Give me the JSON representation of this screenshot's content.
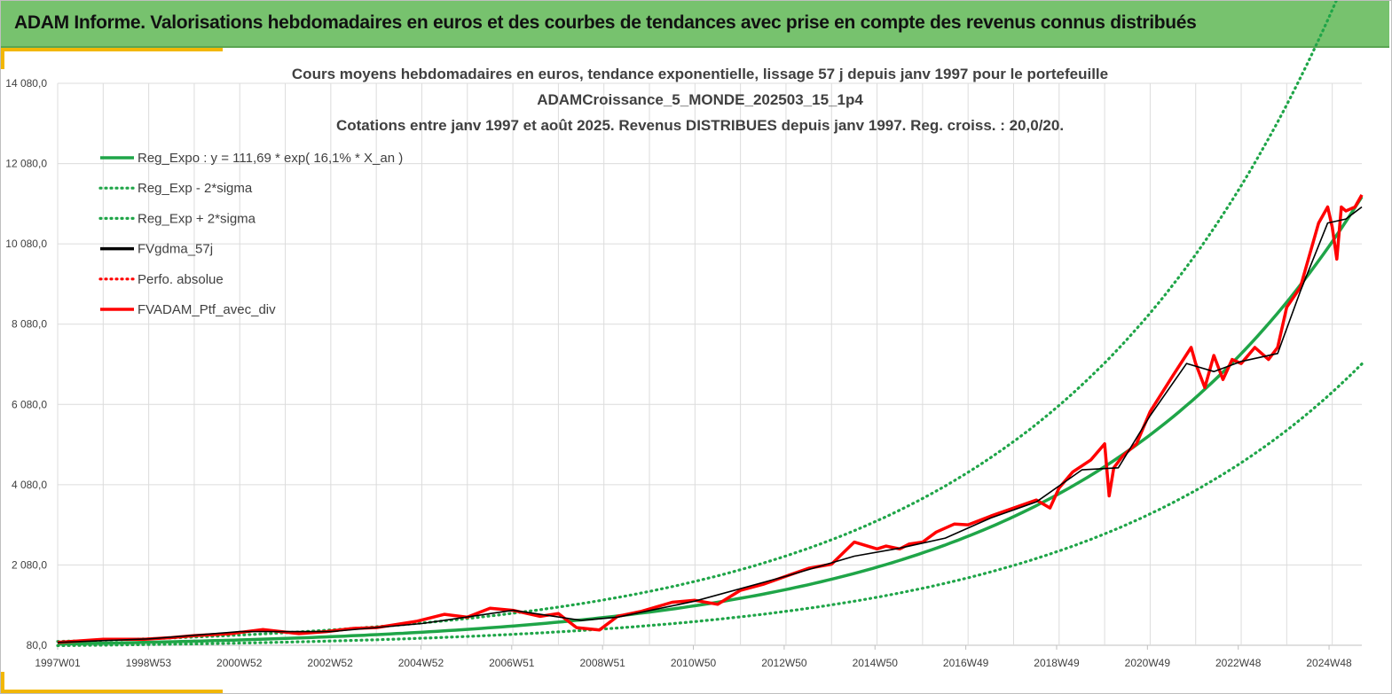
{
  "banner": {
    "title": "ADAM Informe. Valorisations hebdomadaires en euros et des courbes de tendances avec prise en compte des revenus connus distribués"
  },
  "colors": {
    "banner_bg": "#77c26e",
    "accent": "#f2b705",
    "green": "#1fa548",
    "red": "#ff0000",
    "black": "#000000",
    "grid": "#dcdcdc"
  },
  "chart_data": {
    "type": "line",
    "title_lines": [
      "Cours moyens hebdomadaires  en euros, tendance exponentielle, lissage 57 j depuis janv 1997 pour le portefeuille",
      "ADAMCroissance_5_MONDE_202503_15_1p4",
      "Cotations  entre janv 1997 et août 2025. Revenus DISTRIBUES depuis janv 1997. Reg. croiss. : 20,0/20."
    ],
    "x_range": [
      1997.0,
      2025.65
    ],
    "ylim": [
      80,
      14080
    ],
    "y_ticks": [
      "80,0",
      "2 080,0",
      "4 080,0",
      "6 080,0",
      "8 080,0",
      "10 080,0",
      "12 080,0",
      "14 080,0"
    ],
    "x_ticks": [
      "1997W01",
      "1998W53",
      "2000W52",
      "2002W52",
      "2004W52",
      "2006W51",
      "2008W51",
      "2010W50",
      "2012W50",
      "2014W50",
      "2016W49",
      "2018W49",
      "2020W49",
      "2022W48",
      "2024W48"
    ],
    "grid": true,
    "legend_position": "top-left",
    "legend": [
      {
        "label": "Reg_Expo : y = 111,69 * exp( 16,1% *  X_an )",
        "color": "#1fa548",
        "style": "solid"
      },
      {
        "label": "Reg_Exp - 2*sigma",
        "color": "#1fa548",
        "style": "dotted"
      },
      {
        "label": "Reg_Exp + 2*sigma",
        "color": "#1fa548",
        "style": "dotted"
      },
      {
        "label": "FVgdma_57j",
        "color": "#000000",
        "style": "solid"
      },
      {
        "label": "Perfo. absolue",
        "color": "#ff0000",
        "style": "dotted"
      },
      {
        "label": "FVADAM_Ptf_avec_div",
        "color": "#ff0000",
        "style": "solid"
      }
    ],
    "regression": {
      "a": 111.69,
      "b": 0.161,
      "band_low_factor": 0.63,
      "band_high_factor": 1.57
    },
    "series": [
      {
        "name": "FVADAM_Ptf_avec_div",
        "x": [
          1997.0,
          1998.0,
          1998.9,
          1999.5,
          2000.0,
          2000.8,
          2001.5,
          2002.3,
          2002.9,
          2003.5,
          2004.0,
          2004.9,
          2005.5,
          2006.0,
          2006.5,
          2007.0,
          2007.6,
          2008.0,
          2008.4,
          2008.9,
          2009.3,
          2009.8,
          2010.5,
          2011.0,
          2011.5,
          2012.0,
          2012.5,
          2013.0,
          2013.5,
          2014.0,
          2014.5,
          2015.0,
          2015.2,
          2015.5,
          2015.7,
          2016.0,
          2016.3,
          2016.7,
          2017.0,
          2017.5,
          2018.0,
          2018.5,
          2018.8,
          2019.0,
          2019.3,
          2019.7,
          2020.0,
          2020.1,
          2020.2,
          2020.4,
          2020.7,
          2021.0,
          2021.5,
          2021.9,
          2022.0,
          2022.2,
          2022.4,
          2022.6,
          2022.8,
          2023.0,
          2023.3,
          2023.6,
          2023.8,
          2024.0,
          2024.3,
          2024.5,
          2024.7,
          2024.9,
          2025.0,
          2025.1,
          2025.2,
          2025.3,
          2025.5,
          2025.65
        ],
        "y": [
          150,
          230,
          230,
          270,
          320,
          370,
          470,
          370,
          420,
          500,
          520,
          680,
          850,
          780,
          1000,
          950,
          800,
          870,
          520,
          460,
          800,
          920,
          1150,
          1200,
          1100,
          1450,
          1600,
          1800,
          2000,
          2100,
          2650,
          2480,
          2550,
          2480,
          2600,
          2650,
          2900,
          3100,
          3080,
          3300,
          3500,
          3700,
          3500,
          4000,
          4400,
          4700,
          5100,
          3800,
          4500,
          4800,
          5100,
          5900,
          6800,
          7500,
          7100,
          6500,
          7300,
          6700,
          7200,
          7100,
          7500,
          7200,
          7500,
          8500,
          9000,
          9800,
          10600,
          11000,
          10500,
          9700,
          11000,
          10900,
          11000,
          11300
        ]
      },
      {
        "name": "FVgdma_57j",
        "x": [
          1997.0,
          1999.0,
          2001.0,
          2003.0,
          2005.0,
          2007.0,
          2008.5,
          2009.3,
          2011.0,
          2013.0,
          2014.5,
          2015.5,
          2016.5,
          2017.5,
          2018.5,
          2019.5,
          2020.3,
          2021.0,
          2021.8,
          2022.4,
          2023.0,
          2023.8,
          2024.3,
          2024.9,
          2025.3,
          2025.65
        ],
        "y": [
          150,
          240,
          420,
          420,
          620,
          950,
          700,
          780,
          1180,
          1800,
          2300,
          2500,
          2750,
          3250,
          3650,
          4450,
          4500,
          5800,
          7100,
          6900,
          7150,
          7350,
          8900,
          10600,
          10700,
          11000
        ]
      }
    ]
  }
}
